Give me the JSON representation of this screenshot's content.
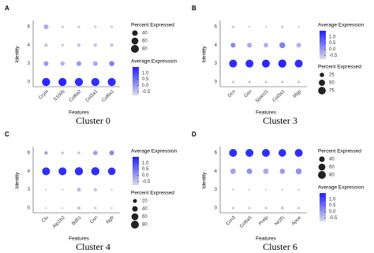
{
  "chart_data": [
    {
      "type": "dot",
      "panel": "A",
      "caption": "Cluster 0",
      "xlabel": "Features",
      "ylabel": "Identity",
      "features": [
        "Crym",
        "S100b",
        "Col6a2",
        "Col3a1",
        "Col6a1"
      ],
      "identities": [
        "0",
        "3",
        "4",
        "6"
      ],
      "percent": [
        [
          85,
          85,
          85,
          85,
          85
        ],
        [
          30,
          25,
          30,
          30,
          35
        ],
        [
          15,
          10,
          15,
          15,
          15
        ],
        [
          30,
          10,
          10,
          10,
          10
        ]
      ],
      "avg": [
        [
          1.4,
          1.4,
          1.3,
          1.3,
          1.3
        ],
        [
          0,
          -0.3,
          0,
          -0.2,
          0.3
        ],
        [
          -0.5,
          -0.6,
          -0.5,
          -0.5,
          -0.5
        ],
        [
          -0.2,
          -0.6,
          -0.6,
          -0.6,
          -0.6
        ]
      ],
      "size_title": "Percent Expressed",
      "size_ticks": [
        40,
        60,
        80
      ],
      "size_range": [
        0,
        100
      ],
      "color_title": "Average Expression",
      "color_ticks": [
        1.0,
        0.5,
        0.0,
        -0.5
      ],
      "clim": [
        -0.8,
        1.5
      ],
      "color_low": "#dcdce6",
      "color_high": "#1f1fff"
    },
    {
      "type": "dot",
      "panel": "B",
      "caption": "Cluster 3",
      "xlabel": "Features",
      "ylabel": "Identity",
      "features": [
        "Dcn",
        "Gsn",
        "Sparcl1",
        "Col3a1",
        "Mgp"
      ],
      "identities": [
        "0",
        "3",
        "4",
        "6"
      ],
      "percent": [
        [
          10,
          10,
          10,
          10,
          10
        ],
        [
          80,
          80,
          80,
          85,
          80
        ],
        [
          30,
          30,
          25,
          45,
          30
        ],
        [
          10,
          5,
          5,
          10,
          5
        ]
      ],
      "avg": [
        [
          -0.6,
          -0.6,
          -0.6,
          -0.6,
          -0.6
        ],
        [
          1.3,
          1.3,
          1.4,
          1.4,
          1.3
        ],
        [
          0.2,
          -0.2,
          -0.2,
          0.3,
          -0.3
        ],
        [
          -0.6,
          -0.6,
          -0.6,
          -0.6,
          -0.6
        ]
      ],
      "size_title": "Percent Expressed",
      "size_ticks": [
        25,
        50,
        75
      ],
      "size_range": [
        0,
        100
      ],
      "color_title": "Average Expression",
      "color_ticks": [
        1.0,
        0.5,
        0.0,
        -0.5
      ],
      "clim": [
        -0.8,
        1.5
      ],
      "color_low": "#dcdce6",
      "color_high": "#1f1fff"
    },
    {
      "type": "dot",
      "panel": "C",
      "caption": "Cluster 4",
      "xlabel": "Features",
      "ylabel": "Identity",
      "features": [
        "Clu",
        "Atp1b2",
        "Bdh1",
        "Gsn",
        "Ngfr"
      ],
      "identities": [
        "0",
        "3",
        "4",
        "6"
      ],
      "percent": [
        [
          5,
          5,
          15,
          10,
          5
        ],
        [
          5,
          5,
          20,
          15,
          5
        ],
        [
          80,
          80,
          85,
          85,
          75
        ],
        [
          15,
          10,
          10,
          25,
          30
        ]
      ],
      "avg": [
        [
          -0.6,
          -0.6,
          -0.5,
          -0.6,
          -0.6
        ],
        [
          -0.6,
          -0.6,
          -0.4,
          -0.5,
          -0.6
        ],
        [
          1.3,
          1.3,
          1.3,
          1.3,
          1.3
        ],
        [
          0,
          -0.5,
          -0.5,
          0,
          0.2
        ]
      ],
      "size_title": "Percent Expressed",
      "size_ticks": [
        20,
        40,
        60,
        80
      ],
      "size_range": [
        0,
        100
      ],
      "color_title": "Average Expression",
      "color_ticks": [
        1.0,
        0.5,
        0.0,
        -0.5
      ],
      "clim": [
        -0.8,
        1.5
      ],
      "color_low": "#dcdce6",
      "color_high": "#1f1fff"
    },
    {
      "type": "dot",
      "panel": "D",
      "caption": "Cluster 6",
      "xlabel": "Features",
      "ylabel": "Identity",
      "features": [
        "Ccn3",
        "Col6a5",
        "Prelp",
        "Nr2f1",
        "Apoe"
      ],
      "identities": [
        "0",
        "3",
        "4",
        "6"
      ],
      "percent": [
        [
          10,
          10,
          10,
          15,
          10
        ],
        [
          5,
          5,
          5,
          5,
          5
        ],
        [
          40,
          40,
          40,
          35,
          45
        ],
        [
          80,
          80,
          80,
          75,
          80
        ]
      ],
      "avg": [
        [
          -0.6,
          -0.6,
          -0.6,
          -0.6,
          -0.6
        ],
        [
          -0.6,
          -0.6,
          -0.6,
          -0.6,
          -0.6
        ],
        [
          -0.1,
          0.1,
          -0.2,
          0,
          0.1
        ],
        [
          1.3,
          1.3,
          1.3,
          1.3,
          1.3
        ]
      ],
      "size_title": "Percent Expressed",
      "size_ticks": [
        40,
        60,
        80
      ],
      "size_range": [
        0,
        100
      ],
      "color_title": "Average Expression",
      "color_ticks": [
        1.0,
        0.5,
        0.0,
        -0.5
      ],
      "clim": [
        -0.8,
        1.5
      ],
      "color_low": "#dcdce6",
      "color_high": "#1f1fff"
    }
  ]
}
